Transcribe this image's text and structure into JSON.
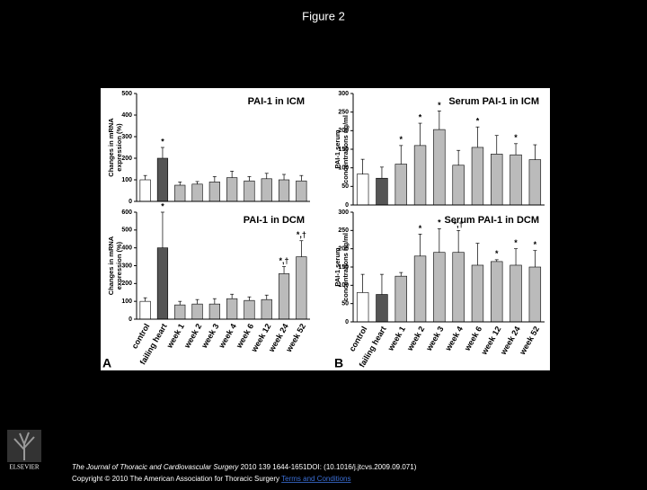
{
  "title": "Figure 2",
  "panels": [
    "A",
    "B"
  ],
  "chart_data": [
    {
      "type": "bar",
      "title": "PAI-1 in ICM",
      "ylabel": [
        "Changes in mRNA",
        "expression (%)"
      ],
      "categories": [
        null,
        null,
        null,
        null,
        null,
        null,
        null,
        null,
        null,
        null
      ],
      "values": [
        100,
        200,
        75,
        80,
        90,
        110,
        95,
        105,
        100,
        95
      ],
      "errors": [
        20,
        50,
        15,
        12,
        25,
        30,
        20,
        25,
        25,
        25
      ],
      "annotations": [
        null,
        "*",
        null,
        null,
        null,
        null,
        null,
        null,
        null,
        null
      ],
      "colors": [
        "#ffffff",
        "#555555",
        "#bbbbbb",
        "#bbbbbb",
        "#bbbbbb",
        "#bbbbbb",
        "#bbbbbb",
        "#bbbbbb",
        "#bbbbbb",
        "#bbbbbb"
      ],
      "ylim": [
        0,
        500
      ],
      "yticks": [
        0,
        100,
        200,
        300,
        400,
        500
      ]
    },
    {
      "type": "bar",
      "title": "PAI-1 in DCM",
      "ylabel": [
        "Changes in mRNA",
        "expression (%)"
      ],
      "categories": [
        "control",
        "failing heart",
        "week 1",
        "week 2",
        "week 3",
        "week 4",
        "week 6",
        "week 12",
        "week 24",
        "week 52"
      ],
      "values": [
        100,
        400,
        80,
        85,
        85,
        115,
        105,
        110,
        255,
        350
      ],
      "errors": [
        20,
        200,
        20,
        25,
        30,
        25,
        20,
        25,
        40,
        90
      ],
      "annotations": [
        null,
        "*",
        null,
        null,
        null,
        null,
        null,
        null,
        "*,†",
        "*,†"
      ],
      "colors": [
        "#ffffff",
        "#555555",
        "#bbbbbb",
        "#bbbbbb",
        "#bbbbbb",
        "#bbbbbb",
        "#bbbbbb",
        "#bbbbbb",
        "#bbbbbb",
        "#bbbbbb"
      ],
      "ylim": [
        0,
        600
      ],
      "yticks": [
        0,
        100,
        200,
        300,
        400,
        500,
        600
      ]
    },
    {
      "type": "bar",
      "title": "Serum PAI-1 in ICM",
      "ylabel": [
        "PAI-1 serum",
        "concentrations ng/ml"
      ],
      "categories": [
        null,
        null,
        null,
        null,
        null,
        null,
        null,
        null,
        null,
        null
      ],
      "values": [
        83,
        72,
        110,
        160,
        203,
        107,
        155,
        137,
        135,
        122
      ],
      "errors": [
        40,
        30,
        50,
        60,
        50,
        40,
        55,
        50,
        30,
        40
      ],
      "annotations": [
        null,
        null,
        "*",
        "*",
        "*",
        null,
        "*",
        null,
        "*",
        null
      ],
      "colors": [
        "#ffffff",
        "#555555",
        "#bbbbbb",
        "#bbbbbb",
        "#bbbbbb",
        "#bbbbbb",
        "#bbbbbb",
        "#bbbbbb",
        "#bbbbbb",
        "#bbbbbb"
      ],
      "ylim": [
        0,
        300
      ],
      "yticks": [
        0,
        50,
        100,
        150,
        200,
        250,
        300
      ]
    },
    {
      "type": "bar",
      "title": "Serum PAI-1 in DCM",
      "ylabel": [
        "PAI-1 serum",
        "concentrations ng/ml"
      ],
      "categories": [
        "control",
        "failing heart",
        "week 1",
        "week 2",
        "week 3",
        "week 4",
        "week 6",
        "week 12",
        "week 24",
        "week 52"
      ],
      "values": [
        80,
        75,
        125,
        180,
        190,
        190,
        155,
        165,
        155,
        150
      ],
      "errors": [
        50,
        55,
        10,
        60,
        65,
        60,
        60,
        5,
        45,
        45
      ],
      "annotations": [
        null,
        null,
        null,
        "*",
        "*",
        "*,†",
        null,
        "*",
        "*",
        "*"
      ],
      "colors": [
        "#ffffff",
        "#555555",
        "#bbbbbb",
        "#bbbbbb",
        "#bbbbbb",
        "#bbbbbb",
        "#bbbbbb",
        "#bbbbbb",
        "#bbbbbb",
        "#bbbbbb"
      ],
      "ylim": [
        0,
        300
      ],
      "yticks": [
        0,
        50,
        100,
        150,
        200,
        250,
        300
      ]
    }
  ],
  "footer": {
    "journal": "The Journal of Thoracic and Cardiovascular Surgery",
    "citation": "2010 139 1644-1651DOI: (10.1016/j.jtcvs.2009.09.071)",
    "copyright": "Copyright © 2010 The American Association for Thoracic Surgery",
    "link": "Terms and Conditions"
  },
  "logo": "ELSEVIER"
}
